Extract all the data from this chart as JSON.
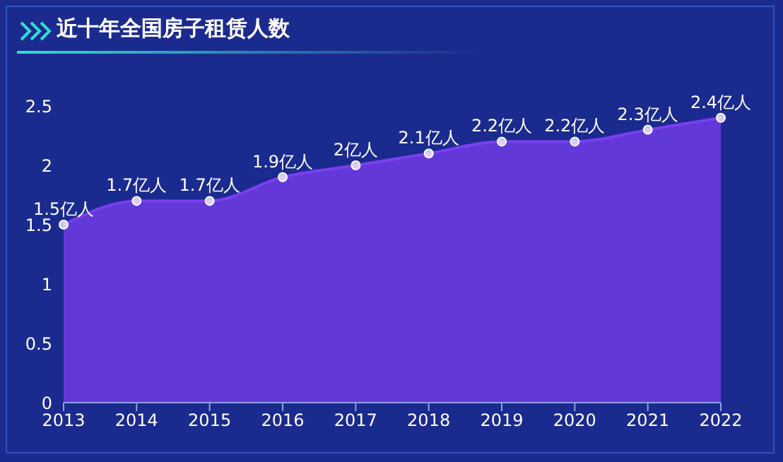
{
  "chart_data": {
    "type": "area",
    "title": "近十年全国房子租赁人数",
    "categories": [
      "2013",
      "2014",
      "2015",
      "2016",
      "2017",
      "2018",
      "2019",
      "2020",
      "2021",
      "2022"
    ],
    "values": [
      1.5,
      1.7,
      1.7,
      1.9,
      2,
      2.1,
      2.2,
      2.2,
      2.3,
      2.4
    ],
    "value_labels": [
      "1.5亿人",
      "1.7亿人",
      "1.7亿人",
      "1.9亿人",
      "2亿人",
      "2.1亿人",
      "2.2亿人",
      "2.2亿人",
      "2.3亿人",
      "2.4亿人"
    ],
    "color": "#7b3ff0",
    "marker": "circle",
    "ylim": [
      0,
      2.5
    ],
    "yticks": [
      0,
      0.5,
      1,
      1.5,
      2,
      2.5
    ]
  }
}
